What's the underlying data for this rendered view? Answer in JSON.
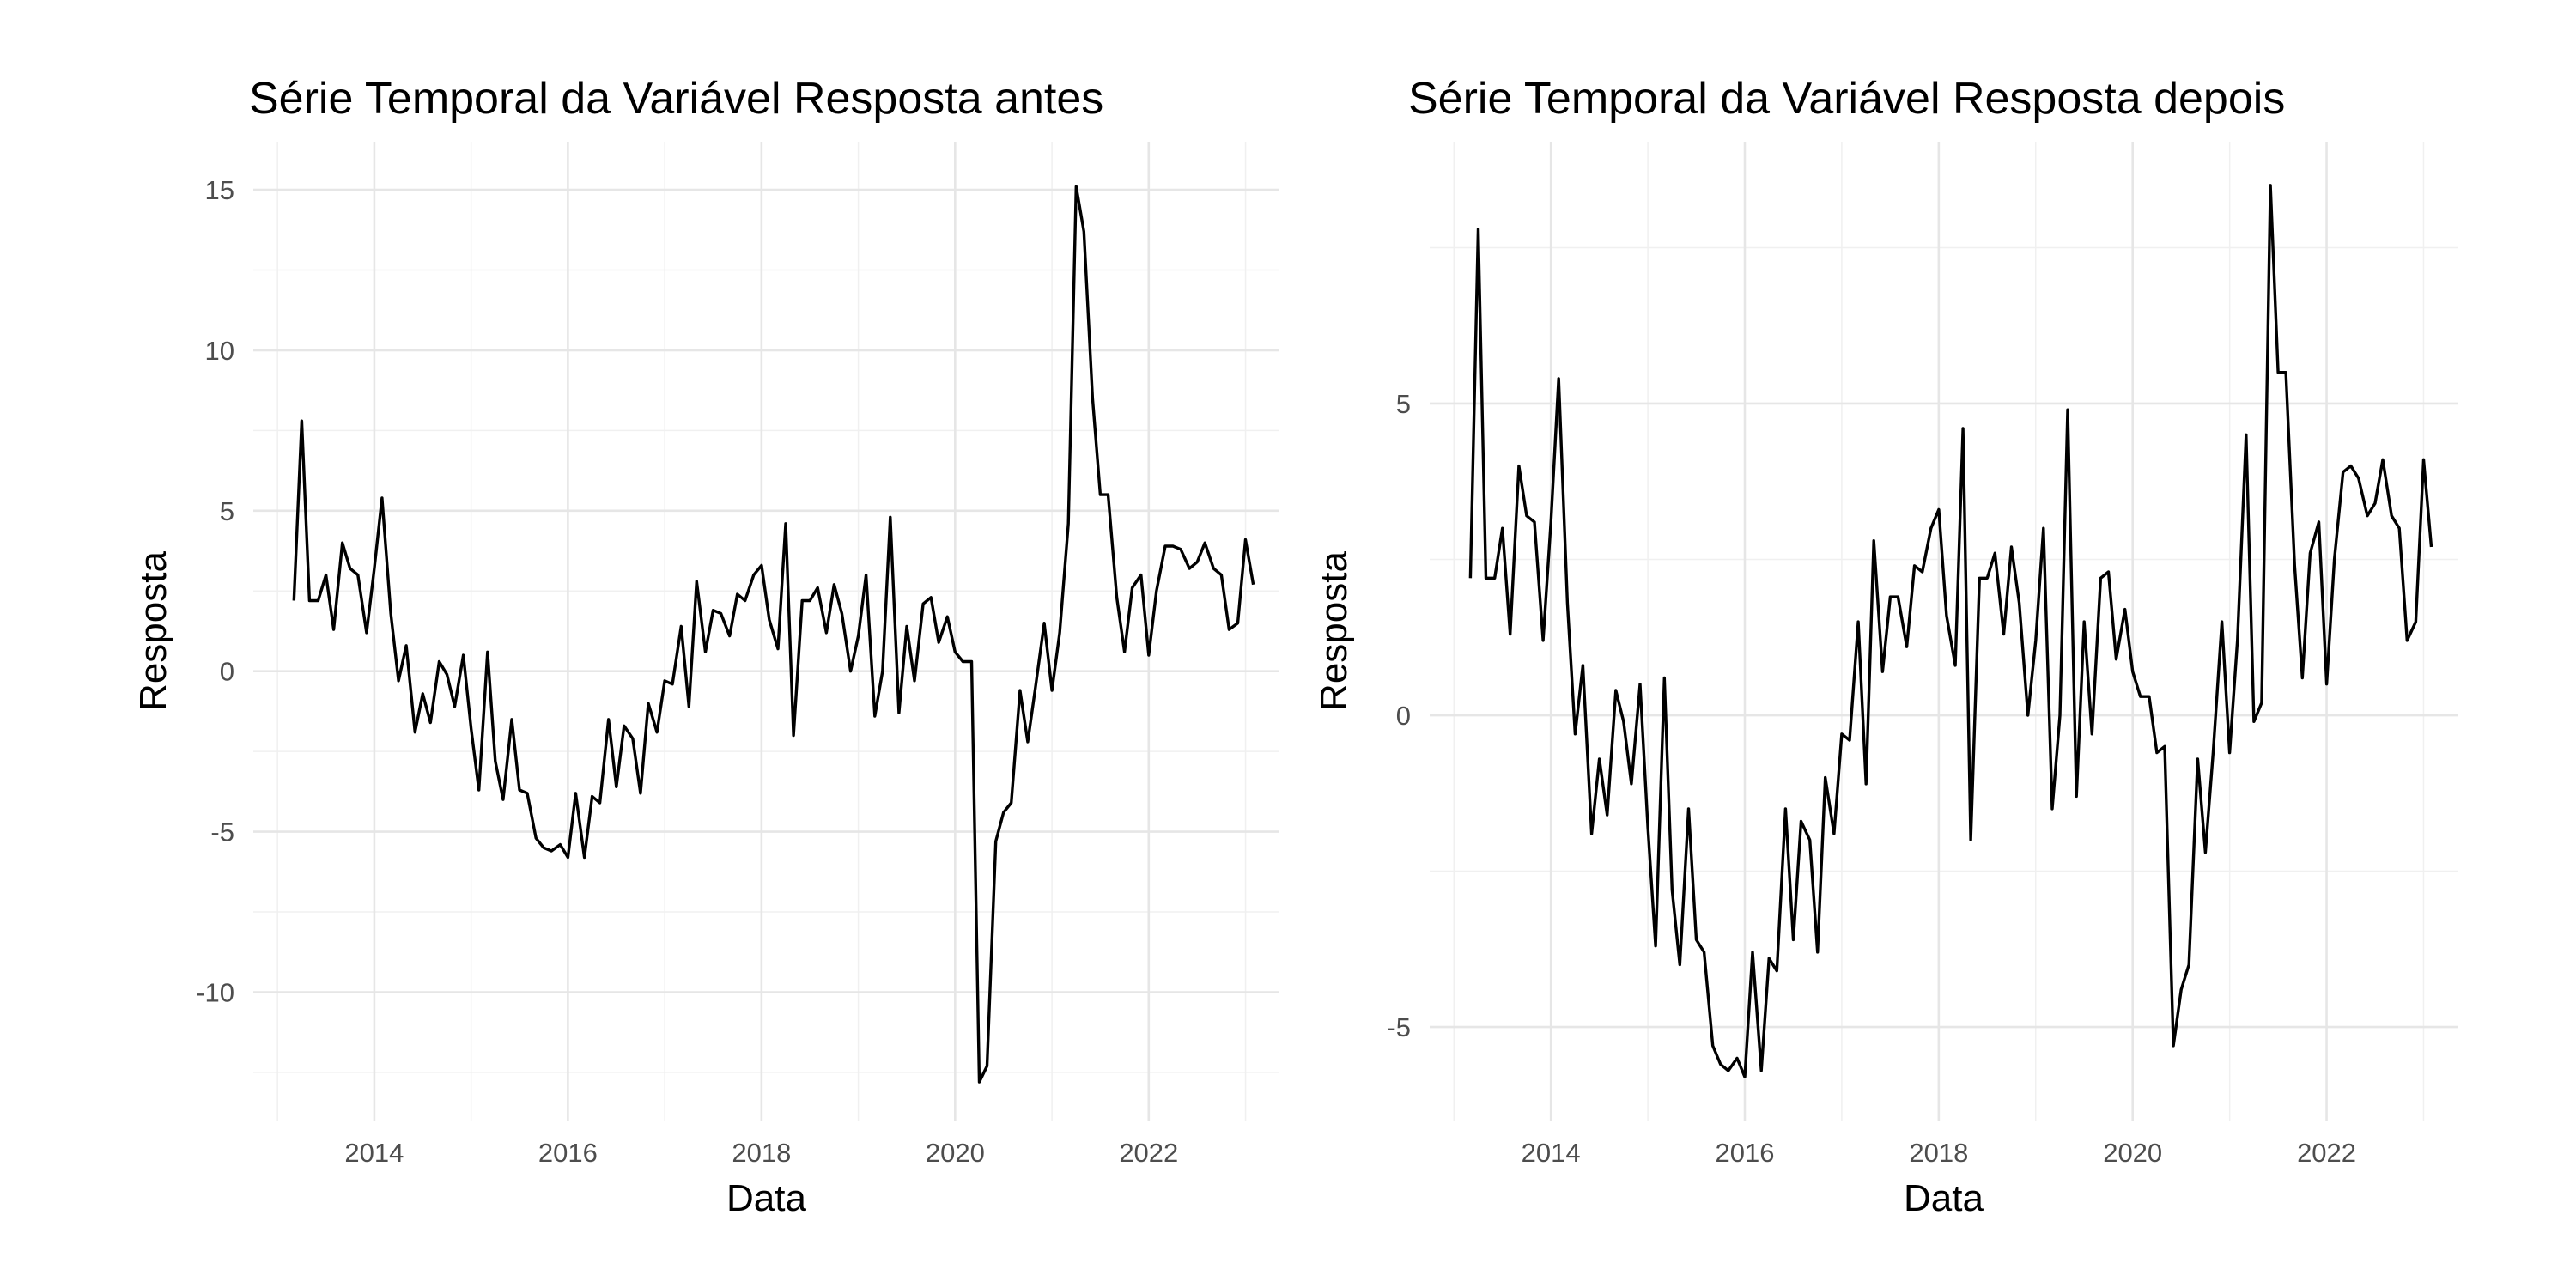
{
  "chart_data": [
    {
      "type": "line",
      "title": "Série Temporal da Variável Resposta antes",
      "xlabel": "Data",
      "ylabel": "Resposta",
      "xlim": [
        2012.75,
        2023.35
      ],
      "ylim": [
        -14.0,
        16.5
      ],
      "grid": true,
      "x_ticks": [
        2014,
        2016,
        2018,
        2020,
        2022
      ],
      "x_tick_labels": [
        "2014",
        "2016",
        "2018",
        "2020",
        "2022"
      ],
      "y_ticks": [
        -10,
        -5,
        0,
        5,
        10,
        15
      ],
      "y_tick_labels": [
        "-10",
        "-5",
        "0",
        "5",
        "10",
        "15"
      ],
      "series": [
        {
          "x": [
            2013.17,
            2013.25,
            2013.33,
            2013.42,
            2013.5,
            2013.58,
            2013.67,
            2013.75,
            2013.83,
            2013.92,
            2014.0,
            2014.08,
            2014.17,
            2014.25,
            2014.33,
            2014.42,
            2014.5,
            2014.58,
            2014.67,
            2014.75,
            2014.83,
            2014.92,
            2015.0,
            2015.08,
            2015.17,
            2015.25,
            2015.33,
            2015.42,
            2015.5,
            2015.58,
            2015.67,
            2015.75,
            2015.83,
            2015.92,
            2016.0,
            2016.08,
            2016.17,
            2016.25,
            2016.33,
            2016.42,
            2016.5,
            2016.58,
            2016.67,
            2016.75,
            2016.83,
            2016.92,
            2017.0,
            2017.08,
            2017.17,
            2017.25,
            2017.33,
            2017.42,
            2017.5,
            2017.58,
            2017.67,
            2017.75,
            2017.83,
            2017.92,
            2018.0,
            2018.08,
            2018.17,
            2018.25,
            2018.33,
            2018.42,
            2018.5,
            2018.58,
            2018.67,
            2018.75,
            2018.83,
            2018.92,
            2019.0,
            2019.08,
            2019.17,
            2019.25,
            2019.33,
            2019.42,
            2019.5,
            2019.58,
            2019.67,
            2019.75,
            2019.83,
            2019.92,
            2020.0,
            2020.08,
            2020.17,
            2020.25,
            2020.33,
            2020.42,
            2020.5,
            2020.58,
            2020.67,
            2020.75,
            2020.83,
            2020.92,
            2021.0,
            2021.08,
            2021.17,
            2021.25,
            2021.33,
            2021.42,
            2021.5,
            2021.58,
            2021.67,
            2021.75,
            2021.83,
            2021.92,
            2022.0,
            2022.08,
            2022.17,
            2022.25,
            2022.33,
            2022.42,
            2022.5,
            2022.58,
            2022.67,
            2022.75,
            2022.83,
            2022.92,
            2023.0,
            2023.08
          ],
          "y": [
            2.2,
            7.8,
            2.2,
            2.2,
            3.0,
            1.3,
            4.0,
            3.2,
            3.0,
            1.2,
            3.2,
            5.4,
            1.8,
            -0.3,
            0.8,
            -1.9,
            -0.7,
            -1.6,
            0.3,
            -0.1,
            -1.1,
            0.5,
            -1.8,
            -3.7,
            0.6,
            -2.8,
            -4.0,
            -1.5,
            -3.7,
            -3.8,
            -5.2,
            -5.5,
            -5.6,
            -5.4,
            -5.8,
            -3.8,
            -5.8,
            -3.9,
            -4.1,
            -1.5,
            -3.6,
            -1.7,
            -2.1,
            -3.8,
            -1.0,
            -1.9,
            -0.3,
            -0.4,
            1.4,
            -1.1,
            2.8,
            0.6,
            1.9,
            1.8,
            1.1,
            2.4,
            2.2,
            3.0,
            3.3,
            1.6,
            0.7,
            4.6,
            -2.0,
            2.2,
            2.2,
            2.6,
            1.2,
            2.7,
            1.8,
            0.0,
            1.1,
            3.0,
            -1.4,
            0.0,
            4.8,
            -1.3,
            1.4,
            -0.3,
            2.1,
            2.3,
            0.9,
            1.7,
            0.6,
            0.3,
            0.3,
            -12.8,
            -12.3,
            -5.3,
            -4.4,
            -4.1,
            -0.6,
            -2.2,
            -0.5,
            1.5,
            -0.6,
            1.2,
            4.6,
            15.1,
            13.7,
            8.5,
            5.5,
            5.5,
            2.3,
            0.6,
            2.6,
            3.0,
            0.5,
            2.5,
            3.9,
            3.9,
            3.8,
            3.2,
            3.4,
            4.0,
            3.2,
            3.0,
            1.3,
            1.5,
            4.1,
            2.7
          ]
        }
      ]
    },
    {
      "type": "line",
      "title": "Série Temporal da Variável Resposta depois",
      "xlabel": "Data",
      "ylabel": "Resposta",
      "xlim": [
        2012.75,
        2023.35
      ],
      "ylim": [
        -6.5,
        9.2
      ],
      "grid": true,
      "x_ticks": [
        2014,
        2016,
        2018,
        2020,
        2022
      ],
      "x_tick_labels": [
        "2014",
        "2016",
        "2018",
        "2020",
        "2022"
      ],
      "y_ticks": [
        -5,
        0,
        5
      ],
      "y_tick_labels": [
        "-5",
        "0",
        "5"
      ],
      "series": [
        {
          "x": [
            2013.17,
            2013.25,
            2013.33,
            2013.42,
            2013.5,
            2013.58,
            2013.67,
            2013.75,
            2013.83,
            2013.92,
            2014.0,
            2014.08,
            2014.17,
            2014.25,
            2014.33,
            2014.42,
            2014.5,
            2014.58,
            2014.67,
            2014.75,
            2014.83,
            2014.92,
            2015.0,
            2015.08,
            2015.17,
            2015.25,
            2015.33,
            2015.42,
            2015.5,
            2015.58,
            2015.67,
            2015.75,
            2015.83,
            2015.92,
            2016.0,
            2016.08,
            2016.17,
            2016.25,
            2016.33,
            2016.42,
            2016.5,
            2016.58,
            2016.67,
            2016.75,
            2016.83,
            2016.92,
            2017.0,
            2017.08,
            2017.17,
            2017.25,
            2017.33,
            2017.42,
            2017.5,
            2017.58,
            2017.67,
            2017.75,
            2017.83,
            2017.92,
            2018.0,
            2018.08,
            2018.17,
            2018.25,
            2018.33,
            2018.42,
            2018.5,
            2018.58,
            2018.67,
            2018.75,
            2018.83,
            2018.92,
            2019.0,
            2019.08,
            2019.17,
            2019.25,
            2019.33,
            2019.42,
            2019.5,
            2019.58,
            2019.67,
            2019.75,
            2019.83,
            2019.92,
            2020.0,
            2020.08,
            2020.17,
            2020.25,
            2020.33,
            2020.42,
            2020.5,
            2020.58,
            2020.67,
            2020.75,
            2020.83,
            2020.92,
            2021.0,
            2021.08,
            2021.17,
            2021.25,
            2021.33,
            2021.42,
            2021.5,
            2021.58,
            2021.67,
            2021.75,
            2021.83,
            2021.92,
            2022.0,
            2022.08,
            2022.17,
            2022.25,
            2022.33,
            2022.42,
            2022.5,
            2022.58,
            2022.67,
            2022.75,
            2022.83,
            2022.92,
            2023.0,
            2023.08
          ],
          "y": [
            2.2,
            7.8,
            2.2,
            2.2,
            3.0,
            1.3,
            4.0,
            3.2,
            3.1,
            1.2,
            3.1,
            5.4,
            1.8,
            -0.3,
            0.8,
            -1.9,
            -0.7,
            -1.6,
            0.4,
            -0.1,
            -1.1,
            0.5,
            -1.8,
            -3.7,
            0.6,
            -2.8,
            -4.0,
            -1.5,
            -3.6,
            -3.8,
            -5.3,
            -5.6,
            -5.7,
            -5.5,
            -5.8,
            -3.8,
            -5.7,
            -3.9,
            -4.1,
            -1.5,
            -3.6,
            -1.7,
            -2.0,
            -3.8,
            -1.0,
            -1.9,
            -0.3,
            -0.4,
            1.5,
            -1.1,
            2.8,
            0.7,
            1.9,
            1.9,
            1.1,
            2.4,
            2.3,
            3.0,
            3.3,
            1.6,
            0.8,
            4.6,
            -2.0,
            2.2,
            2.2,
            2.6,
            1.3,
            2.7,
            1.8,
            0.0,
            1.2,
            3.0,
            -1.5,
            0.0,
            4.9,
            -1.3,
            1.5,
            -0.3,
            2.2,
            2.3,
            0.9,
            1.7,
            0.7,
            0.3,
            0.3,
            -0.6,
            -0.5,
            -5.3,
            -4.4,
            -4.0,
            -0.7,
            -2.2,
            -0.6,
            1.5,
            -0.6,
            1.2,
            4.5,
            -0.1,
            0.2,
            8.5,
            5.5,
            5.5,
            2.4,
            0.6,
            2.6,
            3.1,
            0.5,
            2.5,
            3.9,
            4.0,
            3.8,
            3.2,
            3.4,
            4.1,
            3.2,
            3.0,
            1.2,
            1.5,
            4.1,
            2.7
          ]
        }
      ]
    }
  ]
}
